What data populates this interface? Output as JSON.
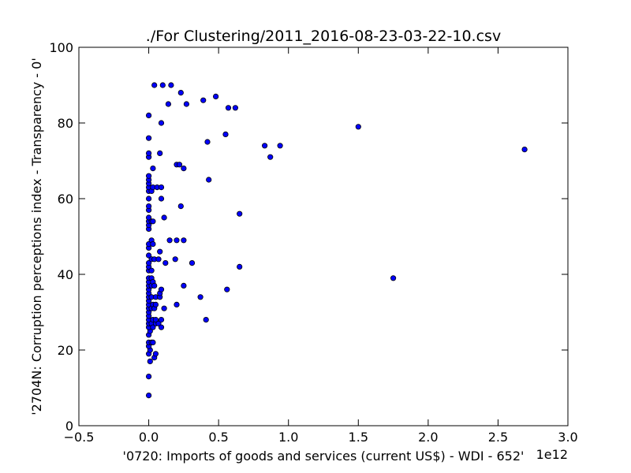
{
  "chart_data": {
    "type": "scatter",
    "title": "./For Clustering/2011_2016-08-23-03-22-10.csv",
    "xlabel": "'0720: Imports of goods and services  (current US$) - WDI - 652'",
    "ylabel": "'2704N: Corruption perceptions index - Transparency - 0'",
    "x_offset_label": "1e12",
    "xlim": [
      -0.5,
      3.0
    ],
    "ylim": [
      0,
      100
    ],
    "x_ticks": [
      "−0.5",
      "0.0",
      "0.5",
      "1.0",
      "1.5",
      "2.0",
      "2.5",
      "3.0"
    ],
    "y_ticks": [
      "0",
      "20",
      "40",
      "60",
      "80",
      "100"
    ],
    "grid": false,
    "marker_color": "#0000ff",
    "marker_edge": "#000000",
    "x_unit_note": "x values in units of 1e12 current US$",
    "points": [
      [
        0.0,
        8
      ],
      [
        0.0,
        13
      ],
      [
        0.01,
        17
      ],
      [
        0.0,
        19
      ],
      [
        0.01,
        20
      ],
      [
        0.0,
        21
      ],
      [
        0.0,
        22
      ],
      [
        0.0,
        24
      ],
      [
        0.01,
        25
      ],
      [
        0.0,
        26
      ],
      [
        0.0,
        27
      ],
      [
        0.0,
        28
      ],
      [
        0.0,
        29
      ],
      [
        0.0,
        30
      ],
      [
        0.0,
        31
      ],
      [
        0.0,
        32
      ],
      [
        0.0,
        33
      ],
      [
        0.0,
        34
      ],
      [
        0.0,
        35
      ],
      [
        0.0,
        36
      ],
      [
        0.0,
        37
      ],
      [
        0.0,
        38
      ],
      [
        0.0,
        39
      ],
      [
        0.0,
        41
      ],
      [
        0.0,
        42
      ],
      [
        0.0,
        43
      ],
      [
        0.0,
        45
      ],
      [
        0.0,
        47
      ],
      [
        0.0,
        48
      ],
      [
        0.0,
        52
      ],
      [
        0.0,
        53
      ],
      [
        0.0,
        54
      ],
      [
        0.0,
        55
      ],
      [
        0.0,
        57
      ],
      [
        0.0,
        58
      ],
      [
        0.0,
        60
      ],
      [
        0.0,
        62
      ],
      [
        0.0,
        63
      ],
      [
        0.0,
        64
      ],
      [
        0.0,
        65
      ],
      [
        0.0,
        66
      ],
      [
        0.0,
        71
      ],
      [
        0.0,
        72
      ],
      [
        0.0,
        76
      ],
      [
        0.0,
        82
      ],
      [
        0.02,
        22
      ],
      [
        0.02,
        27
      ],
      [
        0.02,
        31
      ],
      [
        0.02,
        34
      ],
      [
        0.02,
        37
      ],
      [
        0.02,
        39
      ],
      [
        0.02,
        41
      ],
      [
        0.02,
        44
      ],
      [
        0.02,
        49
      ],
      [
        0.02,
        54
      ],
      [
        0.02,
        62
      ],
      [
        0.03,
        22
      ],
      [
        0.03,
        26
      ],
      [
        0.03,
        28
      ],
      [
        0.03,
        32
      ],
      [
        0.03,
        38
      ],
      [
        0.03,
        48
      ],
      [
        0.03,
        54
      ],
      [
        0.03,
        63
      ],
      [
        0.03,
        68
      ],
      [
        0.04,
        18
      ],
      [
        0.04,
        31
      ],
      [
        0.04,
        37
      ],
      [
        0.04,
        44
      ],
      [
        0.04,
        90
      ],
      [
        0.05,
        19
      ],
      [
        0.05,
        27
      ],
      [
        0.05,
        28
      ],
      [
        0.05,
        32
      ],
      [
        0.05,
        34
      ],
      [
        0.06,
        63
      ],
      [
        0.07,
        44
      ],
      [
        0.07,
        27
      ],
      [
        0.08,
        34
      ],
      [
        0.08,
        35
      ],
      [
        0.08,
        46
      ],
      [
        0.08,
        72
      ],
      [
        0.09,
        26
      ],
      [
        0.09,
        28
      ],
      [
        0.09,
        36
      ],
      [
        0.09,
        60
      ],
      [
        0.09,
        63
      ],
      [
        0.09,
        80
      ],
      [
        0.1,
        90
      ],
      [
        0.11,
        31
      ],
      [
        0.11,
        55
      ],
      [
        0.12,
        43
      ],
      [
        0.14,
        85
      ],
      [
        0.15,
        49
      ],
      [
        0.16,
        90
      ],
      [
        0.19,
        44
      ],
      [
        0.2,
        32
      ],
      [
        0.2,
        49
      ],
      [
        0.2,
        69
      ],
      [
        0.22,
        69
      ],
      [
        0.23,
        58
      ],
      [
        0.23,
        88
      ],
      [
        0.25,
        37
      ],
      [
        0.25,
        49
      ],
      [
        0.25,
        68
      ],
      [
        0.27,
        85
      ],
      [
        0.31,
        43
      ],
      [
        0.37,
        34
      ],
      [
        0.39,
        86
      ],
      [
        0.41,
        28
      ],
      [
        0.42,
        75
      ],
      [
        0.43,
        65
      ],
      [
        0.48,
        87
      ],
      [
        0.55,
        77
      ],
      [
        0.56,
        36
      ],
      [
        0.57,
        84
      ],
      [
        0.62,
        84
      ],
      [
        0.65,
        56
      ],
      [
        0.65,
        42
      ],
      [
        0.83,
        74
      ],
      [
        0.87,
        71
      ],
      [
        0.94,
        74
      ],
      [
        1.5,
        79
      ],
      [
        1.75,
        39
      ],
      [
        2.69,
        73
      ]
    ]
  }
}
